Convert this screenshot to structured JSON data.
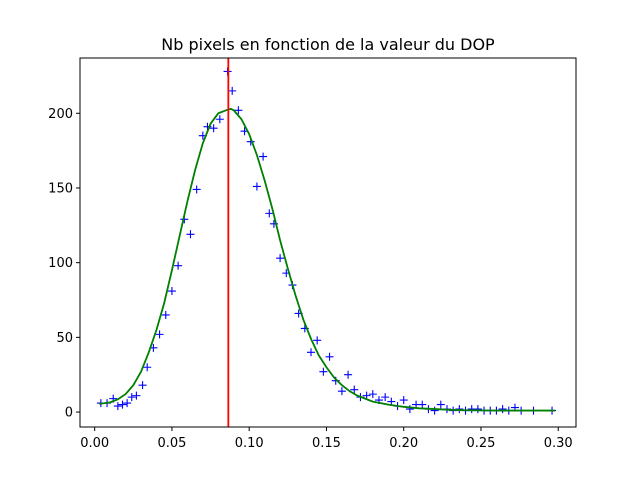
{
  "chart_data": {
    "type": "scatter",
    "title": "Nb pixels en fonction de la valeur du DOP",
    "xlabel": "",
    "ylabel": "",
    "xlim": [
      -0.0095,
      0.3115
    ],
    "ylim": [
      -10,
      237
    ],
    "xticks": [
      0.0,
      0.05,
      0.1,
      0.15,
      0.2,
      0.25,
      0.3
    ],
    "xtick_labels": [
      "0.00",
      "0.05",
      "0.10",
      "0.15",
      "0.20",
      "0.25",
      "0.30"
    ],
    "yticks": [
      0,
      50,
      100,
      150,
      200
    ],
    "ytick_labels": [
      "0",
      "50",
      "100",
      "150",
      "200"
    ],
    "grid": false,
    "series": [
      {
        "kind": "scatter",
        "marker": "plus",
        "color": "#0000ff",
        "points": [
          [
            0.004,
            6
          ],
          [
            0.008,
            6
          ],
          [
            0.012,
            9
          ],
          [
            0.015,
            4
          ],
          [
            0.018,
            5
          ],
          [
            0.021,
            6
          ],
          [
            0.024,
            10
          ],
          [
            0.027,
            11
          ],
          [
            0.031,
            18
          ],
          [
            0.034,
            30
          ],
          [
            0.038,
            43
          ],
          [
            0.042,
            52
          ],
          [
            0.046,
            65
          ],
          [
            0.05,
            81
          ],
          [
            0.054,
            98
          ],
          [
            0.058,
            129
          ],
          [
            0.062,
            119
          ],
          [
            0.066,
            149
          ],
          [
            0.07,
            185
          ],
          [
            0.073,
            191
          ],
          [
            0.077,
            190
          ],
          [
            0.081,
            196
          ],
          [
            0.086,
            228
          ],
          [
            0.089,
            215
          ],
          [
            0.093,
            202
          ],
          [
            0.097,
            188
          ],
          [
            0.101,
            181
          ],
          [
            0.105,
            151
          ],
          [
            0.109,
            171
          ],
          [
            0.113,
            133
          ],
          [
            0.116,
            126
          ],
          [
            0.12,
            103
          ],
          [
            0.124,
            93
          ],
          [
            0.128,
            85
          ],
          [
            0.132,
            66
          ],
          [
            0.136,
            56
          ],
          [
            0.14,
            40
          ],
          [
            0.144,
            48
          ],
          [
            0.148,
            27
          ],
          [
            0.152,
            37
          ],
          [
            0.156,
            21
          ],
          [
            0.16,
            14
          ],
          [
            0.164,
            25
          ],
          [
            0.168,
            15
          ],
          [
            0.172,
            10
          ],
          [
            0.176,
            11
          ],
          [
            0.18,
            12
          ],
          [
            0.184,
            8
          ],
          [
            0.188,
            10
          ],
          [
            0.192,
            7
          ],
          [
            0.196,
            4
          ],
          [
            0.2,
            8
          ],
          [
            0.204,
            2
          ],
          [
            0.208,
            5
          ],
          [
            0.212,
            5
          ],
          [
            0.216,
            2
          ],
          [
            0.22,
            1
          ],
          [
            0.224,
            5
          ],
          [
            0.228,
            2
          ],
          [
            0.232,
            1
          ],
          [
            0.236,
            2
          ],
          [
            0.24,
            1
          ],
          [
            0.244,
            2
          ],
          [
            0.248,
            2
          ],
          [
            0.252,
            1
          ],
          [
            0.256,
            1
          ],
          [
            0.26,
            1
          ],
          [
            0.264,
            2
          ],
          [
            0.268,
            1
          ],
          [
            0.272,
            3
          ],
          [
            0.276,
            1
          ],
          [
            0.284,
            1
          ],
          [
            0.296,
            1
          ]
        ]
      },
      {
        "kind": "curve",
        "color": "#008000",
        "x": [
          0.003,
          0.01,
          0.015,
          0.02,
          0.025,
          0.03,
          0.035,
          0.04,
          0.045,
          0.05,
          0.055,
          0.06,
          0.065,
          0.07,
          0.075,
          0.08,
          0.085,
          0.088,
          0.09,
          0.095,
          0.1,
          0.105,
          0.11,
          0.115,
          0.12,
          0.125,
          0.13,
          0.135,
          0.14,
          0.145,
          0.15,
          0.155,
          0.16,
          0.165,
          0.17,
          0.18,
          0.19,
          0.2,
          0.21,
          0.22,
          0.23,
          0.24,
          0.26,
          0.28,
          0.298
        ],
        "y": [
          5.5,
          6.5,
          8.5,
          12,
          18,
          27,
          40,
          55,
          73,
          95,
          118,
          141,
          162,
          180,
          193,
          200,
          202,
          203,
          202,
          196,
          186,
          172,
          155,
          136,
          115,
          96,
          78,
          62,
          49,
          38,
          30,
          23,
          18,
          14,
          11,
          7,
          5,
          3.5,
          2.5,
          2,
          1.5,
          1.2,
          1,
          1,
          1
        ]
      },
      {
        "kind": "vline",
        "color": "#ff0000",
        "x": 0.0865
      }
    ]
  }
}
